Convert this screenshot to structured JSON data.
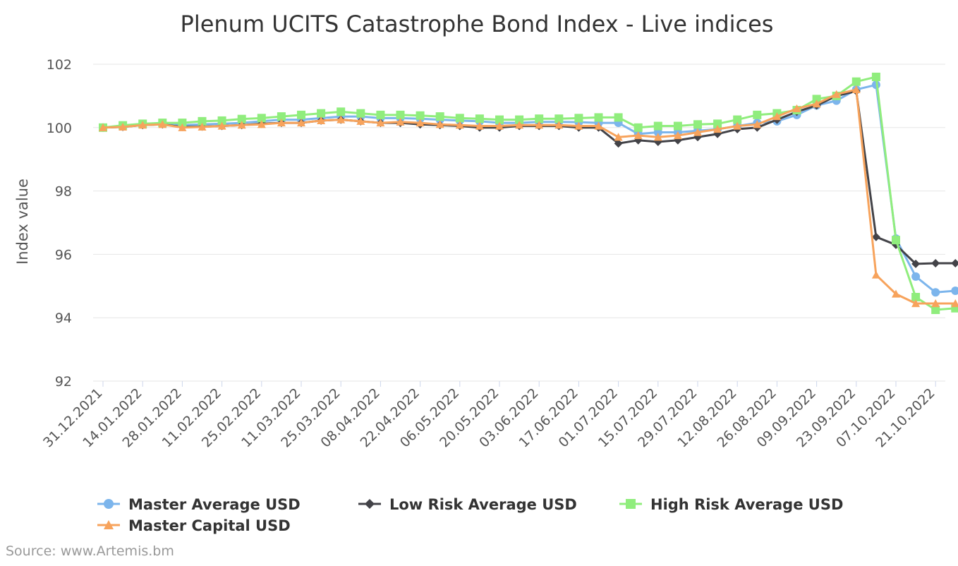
{
  "chart_data": {
    "type": "line",
    "title": "Plenum UCITS Catastrophe Bond Index - Live indices",
    "ylabel": "Index value",
    "xlabel": "",
    "ylim": [
      92,
      102
    ],
    "yticks": [
      92,
      94,
      96,
      98,
      100,
      102
    ],
    "grid": true,
    "legend_position": "bottom",
    "source": "Source: www.Artemis.bm",
    "x_tick_labels": [
      "31.12.2021",
      "14.01.2022",
      "28.01.2022",
      "11.02.2022",
      "25.02.2022",
      "11.03.2022",
      "25.03.2022",
      "08.04.2022",
      "22.04.2022",
      "06.05.2022",
      "20.05.2022",
      "03.06.2022",
      "17.06.2022",
      "01.07.2022",
      "15.07.2022",
      "29.07.2022",
      "12.08.2022",
      "26.08.2022",
      "09.09.2022",
      "23.09.2022",
      "07.10.2022",
      "21.10.2022"
    ],
    "x": [
      "31.12.2021",
      "07.01.2022",
      "14.01.2022",
      "21.01.2022",
      "28.01.2022",
      "04.02.2022",
      "11.02.2022",
      "18.02.2022",
      "25.02.2022",
      "04.03.2022",
      "11.03.2022",
      "18.03.2022",
      "25.03.2022",
      "01.04.2022",
      "08.04.2022",
      "15.04.2022",
      "22.04.2022",
      "29.04.2022",
      "06.05.2022",
      "13.05.2022",
      "20.05.2022",
      "27.05.2022",
      "03.06.2022",
      "10.06.2022",
      "17.06.2022",
      "24.06.2022",
      "01.07.2022",
      "08.07.2022",
      "15.07.2022",
      "22.07.2022",
      "29.07.2022",
      "05.08.2022",
      "12.08.2022",
      "19.08.2022",
      "26.08.2022",
      "02.09.2022",
      "09.09.2022",
      "16.09.2022",
      "23.09.2022",
      "30.09.2022",
      "07.10.2022",
      "14.10.2022",
      "21.10.2022",
      "28.10.2022"
    ],
    "series": [
      {
        "name": "Master Average USD",
        "color": "#7cb5ec",
        "marker": "circle",
        "values": [
          100.0,
          100.05,
          100.1,
          100.12,
          100.08,
          100.1,
          100.12,
          100.15,
          100.2,
          100.25,
          100.25,
          100.3,
          100.35,
          100.35,
          100.3,
          100.3,
          100.28,
          100.25,
          100.22,
          100.2,
          100.15,
          100.15,
          100.18,
          100.18,
          100.17,
          100.15,
          100.15,
          99.8,
          99.85,
          99.85,
          99.9,
          99.95,
          100.05,
          100.15,
          100.2,
          100.4,
          100.7,
          100.85,
          101.2,
          101.35,
          96.5,
          95.3,
          94.8,
          94.85
        ]
      },
      {
        "name": "Low Risk Average USD",
        "color": "#434348",
        "marker": "diamond",
        "values": [
          100.0,
          100.02,
          100.08,
          100.1,
          100.02,
          100.03,
          100.05,
          100.08,
          100.12,
          100.15,
          100.15,
          100.22,
          100.25,
          100.2,
          100.15,
          100.15,
          100.1,
          100.08,
          100.05,
          100.0,
          100.0,
          100.05,
          100.05,
          100.05,
          100.0,
          100.0,
          99.5,
          99.6,
          99.55,
          99.6,
          99.7,
          99.8,
          99.95,
          100.0,
          100.25,
          100.5,
          100.7,
          101.0,
          101.15,
          96.55,
          96.3,
          95.7,
          95.72,
          95.72
        ]
      },
      {
        "name": "High Risk Average USD",
        "color": "#90ed7d",
        "marker": "square",
        "values": [
          100.0,
          100.07,
          100.12,
          100.15,
          100.15,
          100.2,
          100.22,
          100.27,
          100.3,
          100.35,
          100.4,
          100.45,
          100.5,
          100.45,
          100.4,
          100.4,
          100.38,
          100.35,
          100.3,
          100.28,
          100.25,
          100.25,
          100.28,
          100.28,
          100.3,
          100.32,
          100.32,
          100.0,
          100.05,
          100.05,
          100.1,
          100.12,
          100.25,
          100.4,
          100.45,
          100.55,
          100.9,
          101.0,
          101.45,
          101.6,
          96.45,
          94.65,
          94.25,
          94.3
        ]
      },
      {
        "name": "Master Capital USD",
        "color": "#f7a35c",
        "marker": "triangle",
        "values": [
          100.0,
          100.02,
          100.08,
          100.1,
          100.0,
          100.02,
          100.05,
          100.08,
          100.1,
          100.15,
          100.15,
          100.22,
          100.25,
          100.2,
          100.15,
          100.18,
          100.15,
          100.1,
          100.08,
          100.05,
          100.05,
          100.08,
          100.08,
          100.08,
          100.05,
          100.05,
          99.7,
          99.75,
          99.7,
          99.75,
          99.85,
          99.95,
          100.05,
          100.1,
          100.35,
          100.6,
          100.75,
          101.05,
          101.2,
          95.35,
          94.75,
          94.45,
          94.45,
          94.45
        ]
      }
    ]
  }
}
